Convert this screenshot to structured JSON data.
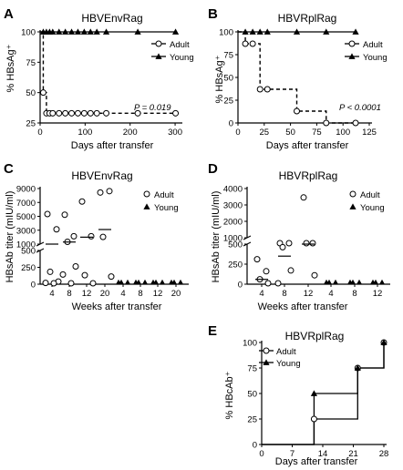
{
  "chart_data": [
    {
      "panel": "A",
      "type": "line",
      "title": "HBVEnvRag",
      "xlabel": "Days after transfer",
      "ylabel": "% HBsAg⁺",
      "xlim": [
        0,
        310
      ],
      "xticks": [
        "0",
        "100",
        "200",
        "300"
      ],
      "ylim": [
        25,
        100
      ],
      "yticks": [
        "25",
        "50",
        "75",
        "100"
      ],
      "legend": [
        "Adult",
        "Young"
      ],
      "legend_position": "right",
      "annotation": "P = 0.019",
      "series": [
        {
          "name": "Adult",
          "x": [
            0,
            7,
            14,
            21,
            28,
            42,
            56,
            70,
            84,
            98,
            112,
            126,
            147,
            217,
            301
          ],
          "y": [
            100,
            50,
            33,
            33,
            33,
            33,
            33,
            33,
            33,
            33,
            33,
            33,
            33,
            33,
            33
          ]
        },
        {
          "name": "Young",
          "x": [
            0,
            7,
            14,
            21,
            28,
            42,
            56,
            70,
            84,
            98,
            112,
            126,
            147,
            217,
            301
          ],
          "y": [
            100,
            100,
            100,
            100,
            100,
            100,
            100,
            100,
            100,
            100,
            100,
            100,
            100,
            100,
            100
          ]
        }
      ]
    },
    {
      "panel": "B",
      "type": "line",
      "title": "HBVRplRag",
      "xlabel": "Days after transfer",
      "ylabel": "% HBsAg⁺",
      "xlim": [
        0,
        125
      ],
      "xticks": [
        "0",
        "25",
        "50",
        "75",
        "100",
        "125"
      ],
      "ylim": [
        0,
        100
      ],
      "yticks": [
        "0",
        "25",
        "50",
        "75",
        "100"
      ],
      "legend": [
        "Adult",
        "Young"
      ],
      "legend_position": "right",
      "annotation": "P < 0.0001",
      "series": [
        {
          "name": "Adult",
          "x": [
            0,
            7,
            14,
            21,
            28,
            56,
            84,
            112
          ],
          "y": [
            100,
            87,
            87,
            37,
            37,
            13,
            0,
            0
          ]
        },
        {
          "name": "Young",
          "x": [
            0,
            7,
            14,
            21,
            28,
            56,
            84,
            112
          ],
          "y": [
            100,
            100,
            100,
            100,
            100,
            100,
            100,
            100
          ]
        }
      ]
    },
    {
      "panel": "C",
      "type": "scatter",
      "title": "HBVEnvRag",
      "xlabel": "Weeks after transfer",
      "ylabel": "HBsAb titer (mIU/ml)",
      "categories": [
        "4",
        "8",
        "12",
        "20",
        "4",
        "8",
        "12",
        "20"
      ],
      "yticks_upper": [
        "1000",
        "3000",
        "5000",
        "7000",
        "9000"
      ],
      "yticks_lower": [
        "0",
        "250",
        "500"
      ],
      "legend": [
        "Adult",
        "Young"
      ],
      "legend_position": "right",
      "series": [
        {
          "name": "Adult",
          "points": [
            [
              0,
              5200
            ],
            [
              0,
              3000
            ],
            [
              0,
              170
            ],
            [
              0,
              25
            ],
            [
              0,
              5
            ],
            [
              0,
              0
            ],
            [
              1,
              5100
            ],
            [
              1,
              2000
            ],
            [
              1,
              1200
            ],
            [
              1,
              250
            ],
            [
              1,
              130
            ],
            [
              1,
              0
            ],
            [
              2,
              7000
            ],
            [
              2,
              2000
            ],
            [
              2,
              120
            ],
            [
              2,
              0
            ],
            [
              3,
              8300
            ],
            [
              3,
              8500
            ],
            [
              3,
              1900
            ],
            [
              3,
              100
            ]
          ],
          "medians": [
            1000,
            1300,
            2000,
            3100
          ]
        },
        {
          "name": "Young",
          "points": [
            [
              4,
              0
            ],
            [
              4,
              0
            ],
            [
              4,
              0
            ],
            [
              5,
              0
            ],
            [
              5,
              0
            ],
            [
              5,
              0
            ],
            [
              6,
              0
            ],
            [
              6,
              0
            ],
            [
              6,
              0
            ],
            [
              7,
              0
            ],
            [
              7,
              0
            ],
            [
              7,
              0
            ]
          ],
          "medians": [
            0,
            0,
            0,
            0
          ]
        }
      ]
    },
    {
      "panel": "D",
      "type": "scatter",
      "title": "HBVRplRag",
      "xlabel": "Weeks after transfer",
      "ylabel": "HBsAb titer (mIU/ml)",
      "categories": [
        "4",
        "8",
        "12",
        "4",
        "8",
        "12"
      ],
      "yticks_upper": [
        "1000",
        "2000",
        "3000",
        "4000"
      ],
      "yticks_lower": [
        "0",
        "250",
        "500"
      ],
      "legend": [
        "Adult",
        "Young"
      ],
      "legend_position": "right",
      "series": [
        {
          "name": "Adult",
          "points": [
            [
              0,
              300
            ],
            [
              0,
              150
            ],
            [
              0,
              50
            ],
            [
              0,
              0
            ],
            [
              1,
              950
            ],
            [
              1,
              700
            ],
            [
              1,
              450
            ],
            [
              1,
              160
            ],
            [
              1,
              0
            ],
            [
              2,
              3400
            ],
            [
              2,
              900
            ],
            [
              2,
              500
            ],
            [
              2,
              100
            ]
          ],
          "medians": [
            60,
            350,
            900
          ]
        },
        {
          "name": "Young",
          "points": [
            [
              3,
              0
            ],
            [
              3,
              0
            ],
            [
              3,
              0
            ],
            [
              4,
              0
            ],
            [
              4,
              0
            ],
            [
              4,
              0
            ],
            [
              5,
              0
            ],
            [
              5,
              0
            ],
            [
              5,
              0
            ]
          ],
          "medians": [
            0,
            0,
            0
          ]
        }
      ]
    },
    {
      "panel": "E",
      "type": "line",
      "title": "HBVRplRag",
      "xlabel": "Days after transfer",
      "ylabel": "% HBcAb⁺",
      "xlim": [
        0,
        28
      ],
      "xticks": [
        "0",
        "7",
        "14",
        "21",
        "28"
      ],
      "ylim": [
        0,
        100
      ],
      "yticks": [
        "0",
        "25",
        "50",
        "75",
        "100"
      ],
      "legend": [
        "Adult",
        "Young"
      ],
      "legend_position": "top-left",
      "series": [
        {
          "name": "Adult",
          "x": [
            0,
            12,
            22,
            28
          ],
          "y": [
            0,
            25,
            75,
            100
          ]
        },
        {
          "name": "Young",
          "x": [
            0,
            12,
            22,
            28
          ],
          "y": [
            0,
            50,
            75,
            100
          ]
        }
      ]
    }
  ]
}
